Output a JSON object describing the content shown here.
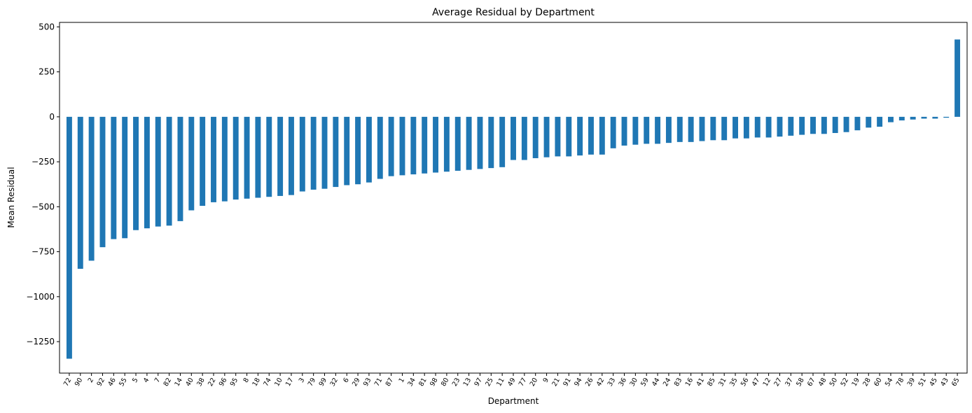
{
  "chart_data": {
    "type": "bar",
    "title": "Average Residual by Department",
    "xlabel": "Department",
    "ylabel": "Mean Residual",
    "ylim": [
      -1425,
      525
    ],
    "yticks": [
      500,
      250,
      0,
      -250,
      -500,
      -750,
      -1000,
      -1250
    ],
    "ytick_labels": [
      "500",
      "250",
      "0",
      "−250",
      "−500",
      "−750",
      "−1000",
      "−1250"
    ],
    "bar_color": "#1f77b4",
    "grid": false,
    "categories": [
      "72",
      "90",
      "2",
      "92",
      "46",
      "55",
      "5",
      "4",
      "7",
      "82",
      "14",
      "40",
      "38",
      "22",
      "96",
      "95",
      "8",
      "18",
      "74",
      "10",
      "17",
      "3",
      "79",
      "99",
      "32",
      "6",
      "29",
      "93",
      "71",
      "87",
      "1",
      "34",
      "81",
      "98",
      "80",
      "23",
      "13",
      "97",
      "25",
      "11",
      "49",
      "77",
      "20",
      "9",
      "21",
      "91",
      "94",
      "26",
      "42",
      "33",
      "36",
      "30",
      "59",
      "44",
      "24",
      "83",
      "16",
      "41",
      "85",
      "31",
      "35",
      "56",
      "47",
      "12",
      "27",
      "37",
      "58",
      "67",
      "48",
      "50",
      "52",
      "19",
      "28",
      "60",
      "54",
      "78",
      "39",
      "51",
      "45",
      "43",
      "65"
    ],
    "values": [
      -1345,
      -845,
      -800,
      -725,
      -680,
      -675,
      -630,
      -620,
      -610,
      -605,
      -580,
      -520,
      -495,
      -475,
      -470,
      -460,
      -455,
      -450,
      -445,
      -440,
      -435,
      -415,
      -405,
      -400,
      -390,
      -380,
      -375,
      -365,
      -345,
      -330,
      -325,
      -320,
      -315,
      -310,
      -305,
      -300,
      -295,
      -290,
      -285,
      -280,
      -240,
      -240,
      -230,
      -225,
      -220,
      -220,
      -215,
      -210,
      -210,
      -175,
      -160,
      -155,
      -150,
      -150,
      -145,
      -140,
      -140,
      -135,
      -130,
      -130,
      -120,
      -120,
      -115,
      -115,
      -110,
      -105,
      -100,
      -95,
      -95,
      -90,
      -85,
      -75,
      -60,
      -55,
      -30,
      -20,
      -15,
      -10,
      -10,
      -5,
      430
    ]
  }
}
